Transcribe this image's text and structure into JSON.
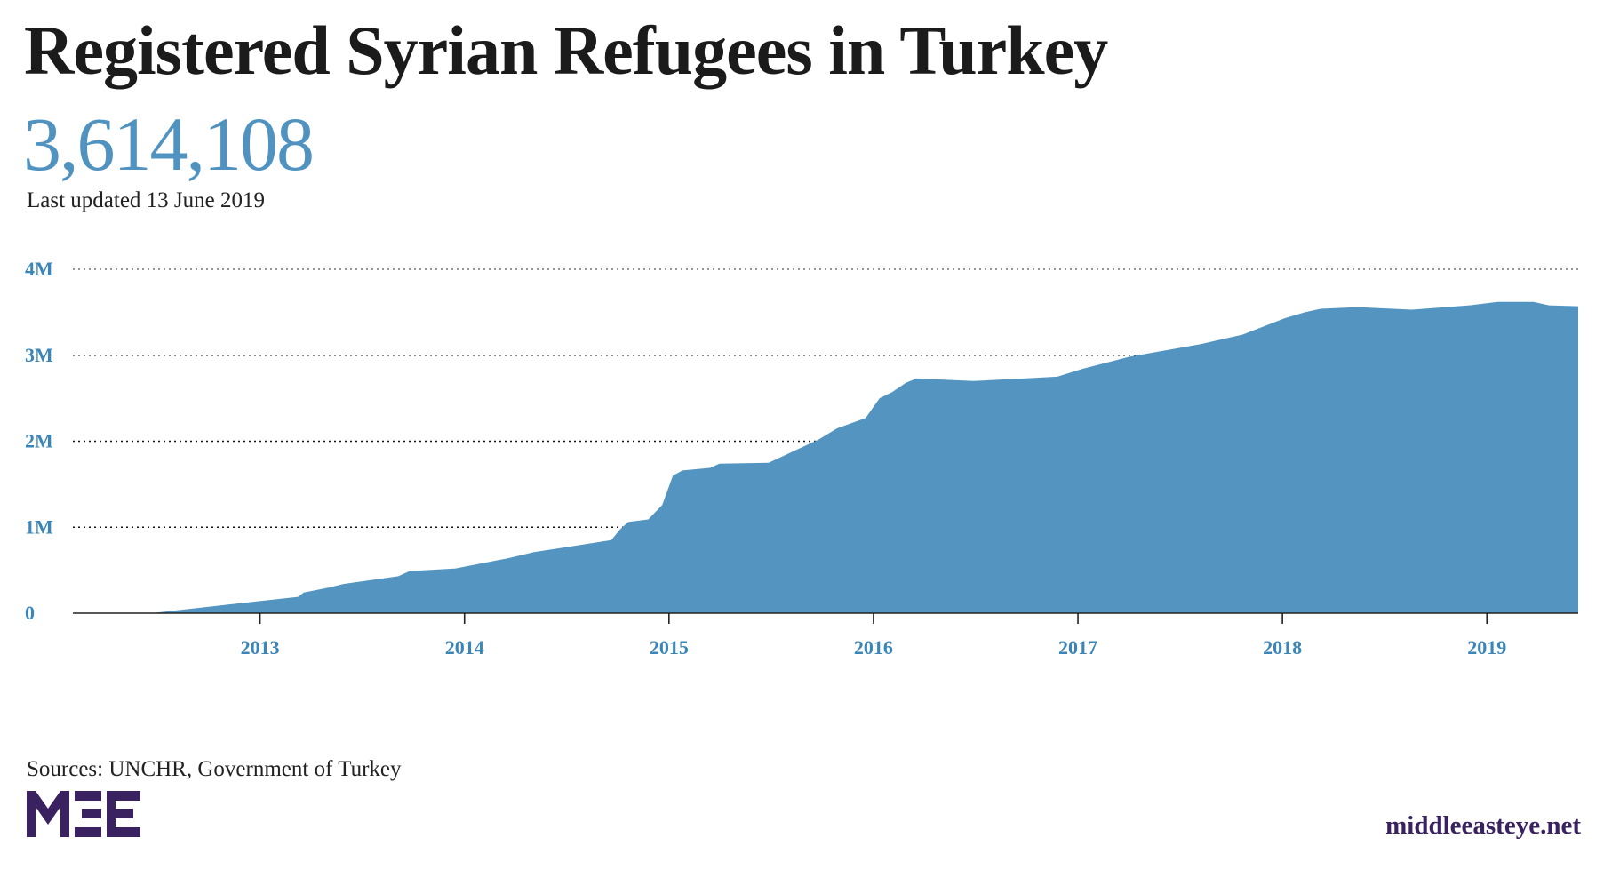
{
  "header": {
    "title": "Registered Syrian Refugees in Turkey",
    "total": "3,614,108",
    "updated": "Last updated 13 June 2019"
  },
  "footer": {
    "sources": "Sources: UNCHR, Government of Turkey",
    "logo_text": "MEE",
    "site": "middleeasteye.net"
  },
  "colors": {
    "fill": "#5395c0",
    "axis_labels": "#3a86b8",
    "logo": "#3a2160"
  },
  "chart_data": {
    "type": "area",
    "title": "Registered Syrian Refugees in Turkey",
    "xlabel": "",
    "ylabel": "",
    "xlim": [
      "2012-02",
      "2019-06-13"
    ],
    "ylim": [
      0,
      4000000
    ],
    "grid": true,
    "y_ticks": [
      {
        "v": 0,
        "label": "0"
      },
      {
        "v": 1000000,
        "label": "1M"
      },
      {
        "v": 2000000,
        "label": "2M"
      },
      {
        "v": 3000000,
        "label": "3M"
      },
      {
        "v": 4000000,
        "label": "4M"
      }
    ],
    "x_ticks": [
      "2013",
      "2014",
      "2015",
      "2016",
      "2017",
      "2018",
      "2019"
    ],
    "points": [
      [
        "2012-02-01",
        0
      ],
      [
        "2012-06-20",
        0
      ],
      [
        "2012-11-05",
        100000
      ],
      [
        "2013-03-10",
        190000
      ],
      [
        "2013-03-20",
        240000
      ],
      [
        "2013-05-05",
        300000
      ],
      [
        "2013-05-30",
        340000
      ],
      [
        "2013-09-05",
        430000
      ],
      [
        "2013-09-25",
        490000
      ],
      [
        "2013-12-15",
        520000
      ],
      [
        "2014-03-20",
        640000
      ],
      [
        "2014-05-05",
        710000
      ],
      [
        "2014-09-20",
        850000
      ],
      [
        "2014-10-05",
        970000
      ],
      [
        "2014-10-20",
        1060000
      ],
      [
        "2014-11-25",
        1090000
      ],
      [
        "2014-12-20",
        1260000
      ],
      [
        "2015-01-08",
        1600000
      ],
      [
        "2015-01-25",
        1660000
      ],
      [
        "2015-03-15",
        1690000
      ],
      [
        "2015-04-01",
        1740000
      ],
      [
        "2015-06-28",
        1750000
      ],
      [
        "2015-09-25",
        2020000
      ],
      [
        "2015-10-28",
        2150000
      ],
      [
        "2015-12-18",
        2270000
      ],
      [
        "2016-01-12",
        2500000
      ],
      [
        "2016-02-03",
        2570000
      ],
      [
        "2016-02-28",
        2680000
      ],
      [
        "2016-03-18",
        2730000
      ],
      [
        "2016-06-28",
        2700000
      ],
      [
        "2016-11-25",
        2750000
      ],
      [
        "2017-01-08",
        2840000
      ],
      [
        "2017-04-01",
        2980000
      ],
      [
        "2017-08-08",
        3130000
      ],
      [
        "2017-10-22",
        3240000
      ],
      [
        "2018-01-05",
        3430000
      ],
      [
        "2018-02-10",
        3500000
      ],
      [
        "2018-03-10",
        3540000
      ],
      [
        "2018-05-15",
        3560000
      ],
      [
        "2018-08-20",
        3530000
      ],
      [
        "2018-12-01",
        3580000
      ],
      [
        "2019-01-20",
        3620000
      ],
      [
        "2019-03-25",
        3620000
      ],
      [
        "2019-04-22",
        3580000
      ],
      [
        "2019-06-13",
        3570000
      ]
    ]
  }
}
